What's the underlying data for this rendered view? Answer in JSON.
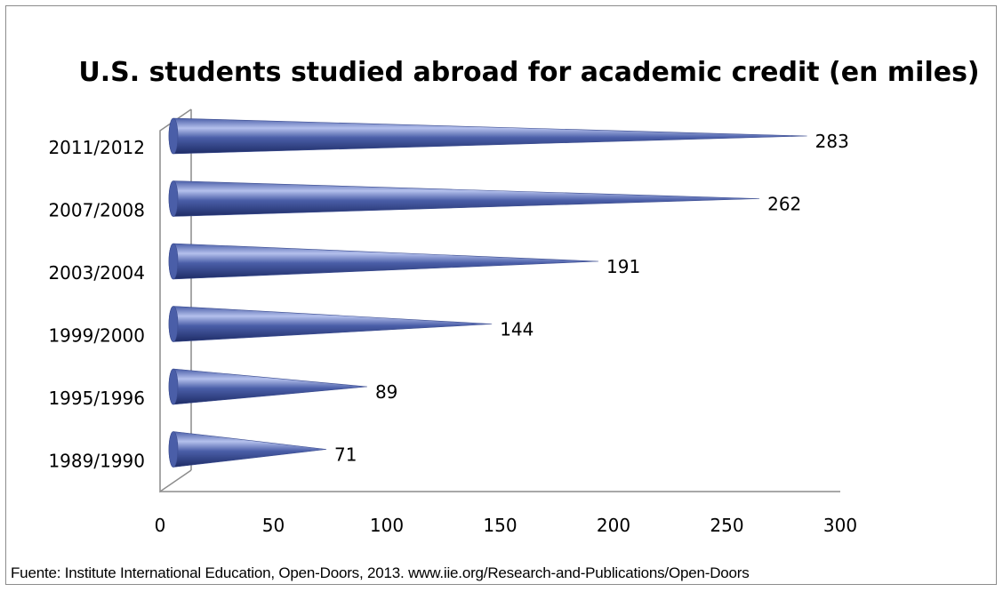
{
  "chart_data": {
    "type": "bar",
    "orientation": "horizontal",
    "bar_shape": "cone",
    "title": "U.S. students studied abroad for academic credit (en miles)",
    "categories": [
      "2011/2012",
      "2007/2008",
      "2003/2004",
      "1999/2000",
      "1995/1996",
      "1989/1990"
    ],
    "values": [
      283,
      262,
      191,
      144,
      89,
      71
    ],
    "xlim": [
      0,
      300
    ],
    "x_ticks": [
      0,
      50,
      100,
      150,
      200,
      250,
      300
    ],
    "grid": false,
    "legend": "none",
    "bar_color": "#4a5ea8",
    "bar_highlight": "#b4c0ec",
    "bar_shadow": "#1e2c66"
  },
  "source_note": "Fuente: Institute International Education, Open-Doors, 2013. www.iie.org/Research-and-Publications/Open-Doors"
}
